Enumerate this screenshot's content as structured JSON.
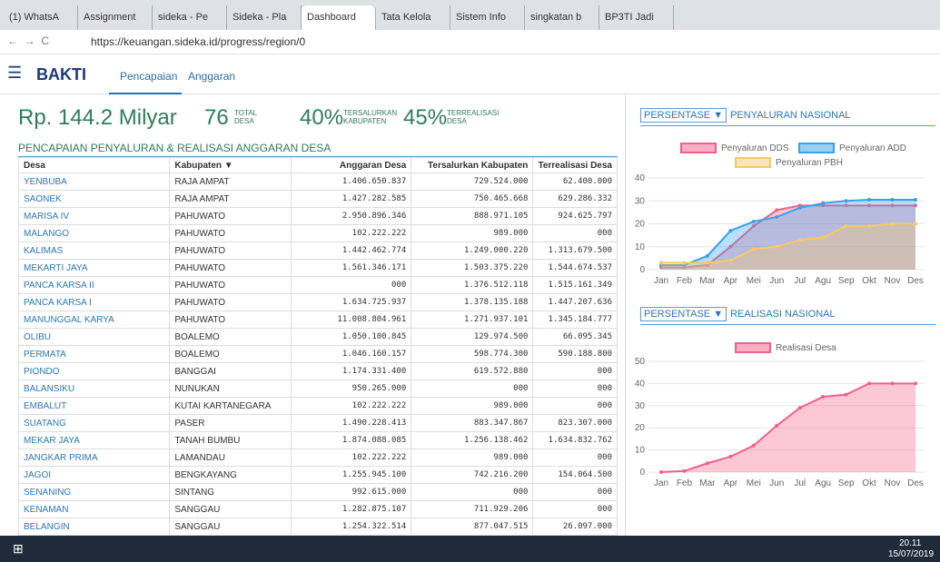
{
  "browser": {
    "tabs": [
      "(1) WhatsA",
      "Assignment",
      "sideka - Pe",
      "Sideka - Pla",
      "Dashboard",
      "Tata Kelola",
      "Sistem Info",
      "singkatan b",
      "BP3TI Jadi"
    ],
    "url": "https://keuangan.sideka.id/progress/region/0"
  },
  "app": {
    "logo": "BAKTI",
    "nav": [
      "Pencapaian",
      "Anggaran"
    ]
  },
  "stats": {
    "anggaran": "Rp. 144.2 Milyar",
    "desa": "76",
    "desa_label": [
      "TOTAL",
      "DESA"
    ],
    "tersalurkan": "40%",
    "tersalurkan_label": [
      "TERSALURKAN",
      "KABUPATEN"
    ],
    "terrealisasi": "45%",
    "terrealisasi_label": [
      "TERREALISASI",
      "DESA"
    ]
  },
  "table": {
    "title": "PENCAPAIAN PENYALURAN & REALISASI ANGGARAN DESA",
    "headers": [
      "Desa",
      "Kabupaten ▼",
      "Anggaran Desa",
      "Tersalurkan Kabupaten",
      "Terrealisasi Desa"
    ],
    "rows": [
      [
        "YENBUBA",
        "RAJA AMPAT",
        "1.406.650.837",
        "729.524.000",
        "62.400.000"
      ],
      [
        "SAONEK",
        "RAJA AMPAT",
        "1.427.282.585",
        "750.465.668",
        "629.286.332"
      ],
      [
        "MARISA IV",
        "PAHUWATO",
        "2.950.896.346",
        "888.971.105",
        "924.625.797"
      ],
      [
        "MALANGO",
        "PAHUWATO",
        "102.222.222",
        "989.000",
        "000"
      ],
      [
        "KALIMAS",
        "PAHUWATO",
        "1.442.462.774",
        "1.249.000.220",
        "1.313.679.500"
      ],
      [
        "MEKARTI JAYA",
        "PAHUWATO",
        "1.561.346.171",
        "1.503.375.220",
        "1.544.674.537"
      ],
      [
        "PANCA KARSA II",
        "PAHUWATO",
        "000",
        "1.376.512.118",
        "1.515.161.349"
      ],
      [
        "PANCA KARSA I",
        "PAHUWATO",
        "1.634.725.937",
        "1.378.135.188",
        "1.447.207.636"
      ],
      [
        "MANUNGGAL KARYA",
        "PAHUWATO",
        "11.008.804.961",
        "1.271.937.101",
        "1.345.184.777"
      ],
      [
        "OLIBU",
        "BOALEMO",
        "1.050.100.845",
        "129.974.500",
        "66.095.345"
      ],
      [
        "PERMATA",
        "BOALEMO",
        "1.046.160.157",
        "598.774.300",
        "590.188.800"
      ],
      [
        "PIONDO",
        "BANGGAI",
        "1.174.331.400",
        "619.572.880",
        "000"
      ],
      [
        "BALANSIKU",
        "NUNUKAN",
        "950.265.000",
        "000",
        "000"
      ],
      [
        "EMBALUT",
        "KUTAI KARTANEGARA",
        "102.222.222",
        "989.000",
        "000"
      ],
      [
        "SUATANG",
        "PASER",
        "1.490.228.413",
        "883.347.867",
        "823.307.000"
      ],
      [
        "MEKAR JAYA",
        "TANAH BUMBU",
        "1.874.088.085",
        "1.256.138.462",
        "1.634.832.762"
      ],
      [
        "JANGKAR PRIMA",
        "LAMANDAU",
        "102.222.222",
        "989.000",
        "000"
      ],
      [
        "JAGOI",
        "BENGKAYANG",
        "1.255.945.100",
        "742.216.200",
        "154.064.500"
      ],
      [
        "SENANING",
        "SINTANG",
        "992.615.000",
        "000",
        "000"
      ],
      [
        "KENAMAN",
        "SANGGAU",
        "1.282.875.107",
        "711.929.206",
        "000"
      ],
      [
        "BELANGIN",
        "SANGGAU",
        "1.254.322.514",
        "877.047.515",
        "26.097.000"
      ]
    ]
  },
  "chart_data": [
    {
      "type": "line",
      "dropdown": "PERSENTASE ▼",
      "title": "PENYALURAN NASIONAL",
      "categories": [
        "Jan",
        "Feb",
        "Mar",
        "Apr",
        "Mei",
        "Jun",
        "Jul",
        "Agu",
        "Sep",
        "Okt",
        "Nov",
        "Des"
      ],
      "series": [
        {
          "name": "Penyaluran DDS",
          "color": "#f5608a",
          "values": [
            1,
            1,
            2,
            10,
            19,
            26,
            28,
            28,
            28,
            28,
            28,
            28
          ]
        },
        {
          "name": "Penyaluran ADD",
          "color": "#36a2eb",
          "values": [
            2,
            2,
            6,
            17,
            21,
            23,
            27,
            29,
            30,
            30.5,
            30.5,
            30.5
          ]
        },
        {
          "name": "Penyaluran PBH",
          "color": "#f7c96b",
          "values": [
            3,
            3,
            3,
            4,
            9,
            10,
            13,
            14,
            19,
            19,
            20,
            20
          ]
        }
      ],
      "ylim": [
        0,
        42
      ],
      "yticks": [
        0,
        10,
        20,
        30,
        40
      ],
      "grid": true
    },
    {
      "type": "line",
      "dropdown": "PERSENTASE ▼",
      "title": "REALISASI NASIONAL",
      "categories": [
        "Jan",
        "Feb",
        "Mar",
        "Apr",
        "Mei",
        "Jun",
        "Jul",
        "Agu",
        "Sep",
        "Okt",
        "Nov",
        "Des"
      ],
      "series": [
        {
          "name": "Realisasi Desa",
          "color": "#f5608a",
          "values": [
            0,
            0.5,
            4,
            7,
            12,
            21,
            29,
            34,
            35,
            40,
            40,
            40
          ]
        }
      ],
      "ylim": [
        0,
        50
      ],
      "yticks": [
        0,
        10,
        20,
        30,
        40,
        50
      ],
      "grid": true
    }
  ],
  "taskbar": {
    "time": "20.11",
    "date": "15/07/2019"
  }
}
